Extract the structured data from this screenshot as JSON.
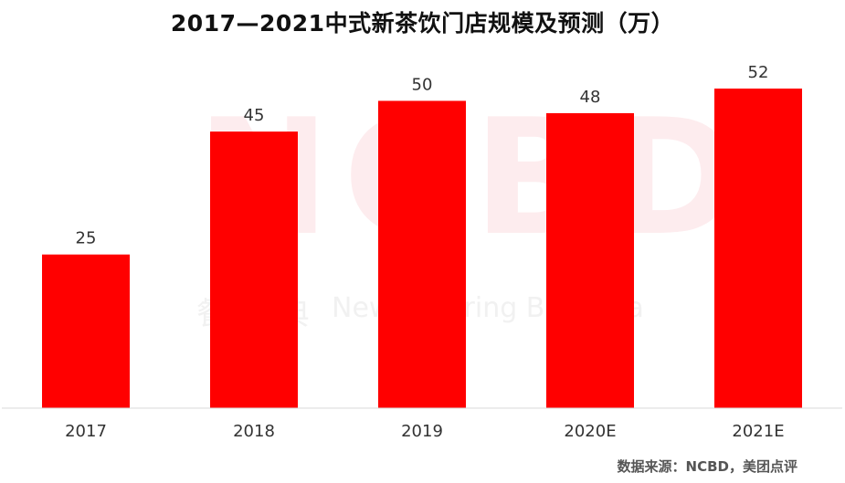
{
  "title": "2017—2021中式新茶饮门店规模及预测（万）",
  "source_note": "数据来源：NCBD，美团点评",
  "watermark": {
    "logo": "NCBD",
    "chinese": "餐 宝 典",
    "subtitle": "New Catering Big Data"
  },
  "colors": {
    "bar": "#ff0000",
    "axis": "#d9d9d9",
    "watermark": "#fdecee"
  },
  "chart_data": {
    "type": "bar",
    "title": "2017—2021中式新茶饮门店规模及预测（万）",
    "categories": [
      "2017",
      "2018",
      "2019",
      "2020E",
      "2021E"
    ],
    "values": [
      25,
      45,
      50,
      48,
      52
    ],
    "data_labels": [
      "25",
      "45",
      "50",
      "48",
      "52"
    ],
    "xlabel": "",
    "ylabel": "",
    "ylim": [
      0,
      60
    ],
    "grid": false,
    "legend": "none"
  }
}
